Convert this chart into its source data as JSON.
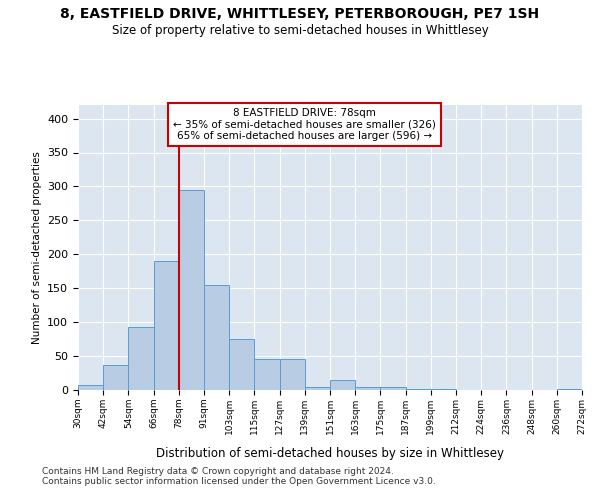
{
  "title": "8, EASTFIELD DRIVE, WHITTLESEY, PETERBOROUGH, PE7 1SH",
  "subtitle": "Size of property relative to semi-detached houses in Whittlesey",
  "xlabel": "Distribution of semi-detached houses by size in Whittlesey",
  "ylabel": "Number of semi-detached properties",
  "footnote1": "Contains HM Land Registry data © Crown copyright and database right 2024.",
  "footnote2": "Contains public sector information licensed under the Open Government Licence v3.0.",
  "annotation_title": "8 EASTFIELD DRIVE: 78sqm",
  "annotation_line1": "← 35% of semi-detached houses are smaller (326)",
  "annotation_line2": "65% of semi-detached houses are larger (596) →",
  "bar_color": "#b8cce4",
  "bar_edge_color": "#5b9bd5",
  "marker_color": "#cc0000",
  "background_color": "#dce6f1",
  "bin_labels": [
    "30sqm",
    "42sqm",
    "54sqm",
    "66sqm",
    "78sqm",
    "91sqm",
    "103sqm",
    "115sqm",
    "127sqm",
    "139sqm",
    "151sqm",
    "163sqm",
    "175sqm",
    "187sqm",
    "199sqm",
    "212sqm",
    "224sqm",
    "236sqm",
    "248sqm",
    "260sqm",
    "272sqm"
  ],
  "counts": [
    7,
    37,
    93,
    190,
    295,
    155,
    75,
    46,
    46,
    4,
    15,
    4,
    4,
    2,
    2,
    0,
    0,
    0,
    0,
    2
  ],
  "marker_bin_index": 4,
  "ylim": [
    0,
    420
  ],
  "yticks": [
    0,
    50,
    100,
    150,
    200,
    250,
    300,
    350,
    400
  ]
}
